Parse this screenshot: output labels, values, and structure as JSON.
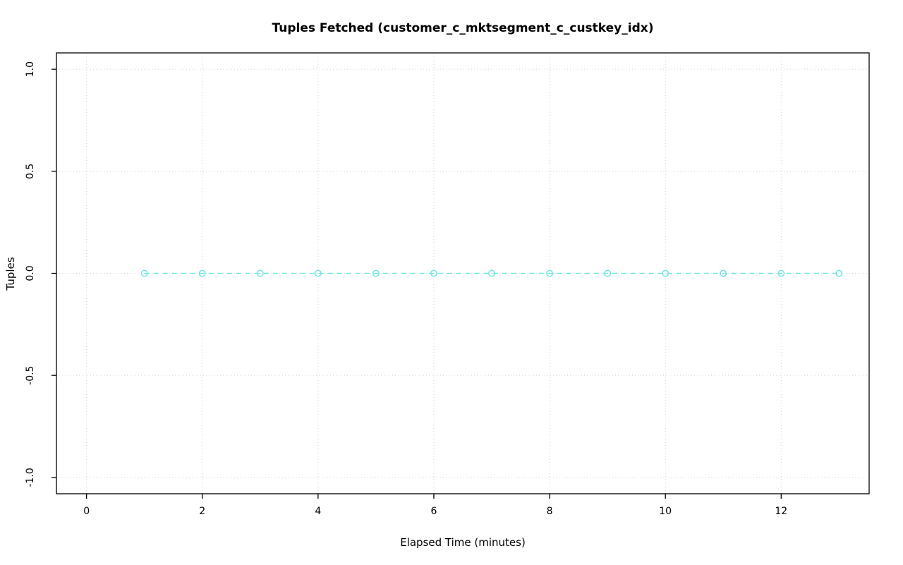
{
  "chart_data": {
    "type": "line",
    "title": "Tuples Fetched (customer_c_mktsegment_c_custkey_idx)",
    "xlabel": "Elapsed Time (minutes)",
    "ylabel": "Tuples",
    "x": [
      1,
      2,
      3,
      4,
      5,
      6,
      7,
      8,
      9,
      10,
      11,
      12,
      13
    ],
    "y": [
      0,
      0,
      0,
      0,
      0,
      0,
      0,
      0,
      0,
      0,
      0,
      0,
      0
    ],
    "xlim": [
      -0.52,
      13.52
    ],
    "ylim": [
      -1.08,
      1.08
    ],
    "x_ticks": [
      0,
      2,
      4,
      6,
      8,
      10,
      12
    ],
    "x_tick_labels": [
      "0",
      "2",
      "4",
      "6",
      "8",
      "10",
      "12"
    ],
    "y_ticks": [
      -1.0,
      -0.5,
      0.0,
      0.5,
      1.0
    ],
    "y_tick_labels": [
      "-1.0",
      "-0.5",
      "0.0",
      "0.5",
      "1.0"
    ],
    "grid": true,
    "legend": "none",
    "marker": "open-circle",
    "line_style": "dashed",
    "series_color": "#6fe8e2",
    "grid_color": "#d4d4d4",
    "axis_color": "#000000",
    "background_color": "#ffffff"
  }
}
